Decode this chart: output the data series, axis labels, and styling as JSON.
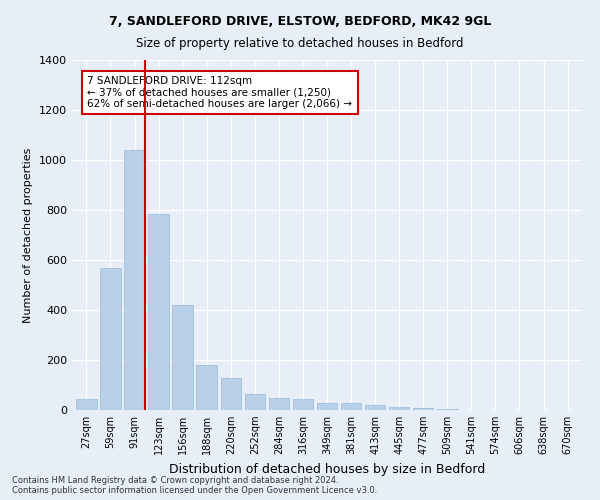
{
  "title1": "7, SANDLEFORD DRIVE, ELSTOW, BEDFORD, MK42 9GL",
  "title2": "Size of property relative to detached houses in Bedford",
  "xlabel": "Distribution of detached houses by size in Bedford",
  "ylabel": "Number of detached properties",
  "categories": [
    "27sqm",
    "59sqm",
    "91sqm",
    "123sqm",
    "156sqm",
    "188sqm",
    "220sqm",
    "252sqm",
    "284sqm",
    "316sqm",
    "349sqm",
    "381sqm",
    "413sqm",
    "445sqm",
    "477sqm",
    "509sqm",
    "541sqm",
    "574sqm",
    "606sqm",
    "638sqm",
    "670sqm"
  ],
  "values": [
    45,
    570,
    1040,
    785,
    420,
    180,
    130,
    65,
    50,
    45,
    30,
    28,
    20,
    13,
    10,
    3,
    1,
    0,
    0,
    0,
    0
  ],
  "bar_color": "#b8d0e8",
  "bar_edge_color": "#9ab8d8",
  "vline_color": "#cc0000",
  "annotation_text": "7 SANDLEFORD DRIVE: 112sqm\n← 37% of detached houses are smaller (1,250)\n62% of semi-detached houses are larger (2,066) →",
  "annotation_box_color": "#ffffff",
  "annotation_box_edge_color": "#cc0000",
  "ylim": [
    0,
    1400
  ],
  "yticks": [
    0,
    200,
    400,
    600,
    800,
    1000,
    1200,
    1400
  ],
  "bg_color": "#e8eef8",
  "grid_color": "#ffffff",
  "footer1": "Contains HM Land Registry data © Crown copyright and database right 2024.",
  "footer2": "Contains public sector information licensed under the Open Government Licence v3.0."
}
